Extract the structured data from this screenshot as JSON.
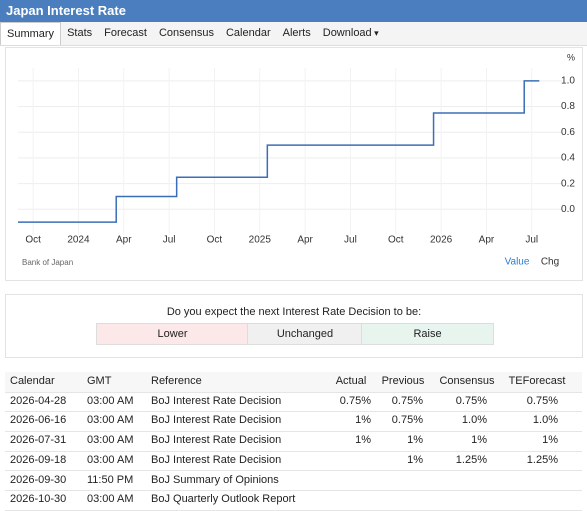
{
  "header": {
    "title": "Japan Interest Rate"
  },
  "tabs": [
    "Summary",
    "Stats",
    "Forecast",
    "Consensus",
    "Calendar",
    "Alerts",
    "Download"
  ],
  "chart": {
    "type": "line",
    "step": true,
    "unit": "%",
    "color": "#3a6fb7",
    "grid": true,
    "x": [
      "2023-09",
      "2024-03",
      "2024-07",
      "2025-01",
      "2025-12",
      "2026-06",
      "2026-07"
    ],
    "values": [
      -0.1,
      0.1,
      0.25,
      0.5,
      0.75,
      1,
      1
    ],
    "xlim": [
      "2023-09",
      "2026-09"
    ],
    "xticks": [
      {
        "value": "2023-10",
        "label": "Oct"
      },
      {
        "value": "2024-01",
        "label": "2024"
      },
      {
        "value": "2024-04",
        "label": "Apr"
      },
      {
        "value": "2024-07",
        "label": "Jul"
      },
      {
        "value": "2024-10",
        "label": "Oct"
      },
      {
        "value": "2025-01",
        "label": "2025"
      },
      {
        "value": "2025-04",
        "label": "Apr"
      },
      {
        "value": "2025-07",
        "label": "Jul"
      },
      {
        "value": "2025-10",
        "label": "Oct"
      },
      {
        "value": "2026-01",
        "label": "2026"
      },
      {
        "value": "2026-04",
        "label": "Apr"
      },
      {
        "value": "2026-07",
        "label": "Jul"
      }
    ],
    "ylim": [
      -0.2,
      1.1
    ],
    "yticks": [
      {
        "value": 0,
        "label": "0.0"
      },
      0.2,
      0.4,
      0.6,
      0.8,
      {
        "value": 1,
        "label": "1.0"
      }
    ],
    "source": "Bank of Japan",
    "buttons": [
      "Value",
      "Chg"
    ]
  },
  "poll": {
    "question": "Do you expect the next Interest Rate Decision to be:",
    "options": [
      "Lower",
      "Unchanged",
      "Raise"
    ]
  },
  "table": {
    "columns": [
      "Calendar",
      "GMT",
      "Reference",
      "Actual",
      "Previous",
      "Consensus",
      "TEForecast"
    ],
    "rows": [
      [
        "2026-04-28",
        "03:00 AM",
        "BoJ Interest Rate Decision",
        "0.75%",
        "0.75%",
        "0.75%",
        "0.75%"
      ],
      [
        "2026-06-16",
        "03:00 AM",
        "BoJ Interest Rate Decision",
        "1%",
        "0.75%",
        "1.0%",
        "1.0%"
      ],
      [
        "2026-07-31",
        "03:00 AM",
        "BoJ Interest Rate Decision",
        "1%",
        "1%",
        "1%",
        "1%"
      ],
      [
        "2026-09-18",
        "03:00 AM",
        "BoJ Interest Rate Decision",
        null,
        "1%",
        "1.25%",
        "1.25%"
      ],
      [
        "2026-09-30",
        "11:50 PM",
        "BoJ Summary of Opinions",
        null,
        null,
        null,
        null
      ],
      [
        "2026-10-30",
        "03:00 AM",
        "BoJ Quarterly Outlook Report",
        null,
        null,
        null,
        null
      ]
    ]
  }
}
